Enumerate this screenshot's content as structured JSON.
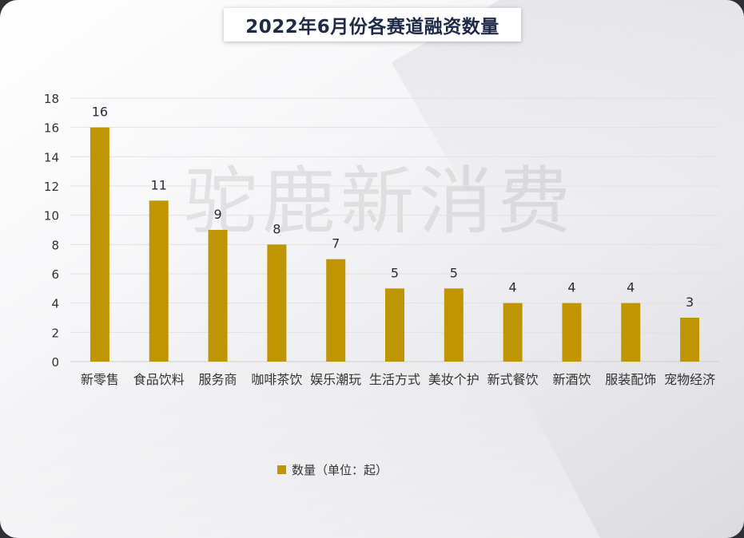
{
  "chart_data": {
    "type": "bar",
    "title": "2022年6月份各赛道融资数量",
    "categories": [
      "新零售",
      "食品饮料",
      "服务商",
      "咖啡茶饮",
      "娱乐潮玩",
      "生活方式",
      "美妆个护",
      "新式餐饮",
      "新酒饮",
      "服装配饰",
      "宠物经济"
    ],
    "series": [
      {
        "name": "数量（单位：起）",
        "values": [
          16,
          11,
          9,
          8,
          7,
          5,
          5,
          4,
          4,
          4,
          3
        ],
        "color": "#c09503"
      }
    ],
    "ylim": [
      0,
      18
    ],
    "yticks": [
      "0",
      "2",
      "4",
      "6",
      "8",
      "10",
      "12",
      "14",
      "16",
      "18"
    ],
    "grid": true,
    "legend": "bottom-center",
    "data_labels": true
  },
  "watermark": "驼鹿新消费"
}
